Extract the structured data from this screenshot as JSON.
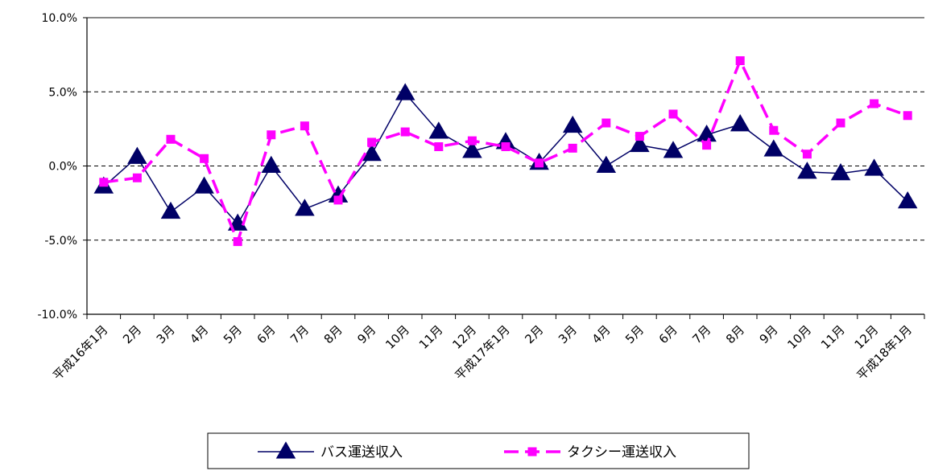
{
  "chart_data": {
    "type": "line",
    "categories": [
      "平成16年1月",
      "2月",
      "3月",
      "4月",
      "5月",
      "6月",
      "7月",
      "8月",
      "9月",
      "10月",
      "11月",
      "12月",
      "平成17年1月",
      "2月",
      "3月",
      "4月",
      "5月",
      "6月",
      "7月",
      "8月",
      "9月",
      "10月",
      "11月",
      "12月",
      "平成18年1月"
    ],
    "series": [
      {
        "name": "バス運送収入",
        "color": "#000066",
        "marker": "triangle",
        "line_style": "solid",
        "values": [
          -1.4,
          0.6,
          -3.1,
          -1.4,
          -3.9,
          0.0,
          -2.9,
          -2.0,
          0.8,
          4.9,
          2.3,
          1.0,
          1.6,
          0.2,
          2.7,
          0.0,
          1.4,
          1.0,
          2.1,
          2.8,
          1.1,
          -0.4,
          -0.5,
          -0.2,
          -2.4
        ]
      },
      {
        "name": "タクシー運送収入",
        "color": "#ff00ff",
        "marker": "square",
        "line_style": "dashed",
        "values": [
          -1.1,
          -0.8,
          1.8,
          0.5,
          -5.1,
          2.1,
          2.7,
          -2.3,
          1.6,
          2.3,
          1.3,
          1.7,
          1.3,
          0.2,
          1.2,
          2.9,
          2.0,
          3.5,
          1.4,
          7.1,
          2.4,
          0.8,
          2.9,
          4.2,
          3.4
        ]
      }
    ],
    "ylim": [
      -10,
      10
    ],
    "yticks": [
      -10,
      -5,
      0,
      5,
      10
    ],
    "ytick_labels": [
      "-10.0%",
      "-5.0%",
      "0.0%",
      "5.0%",
      "10.0%"
    ],
    "grid": "horizontal-dashed",
    "legend_position": "bottom-center"
  }
}
